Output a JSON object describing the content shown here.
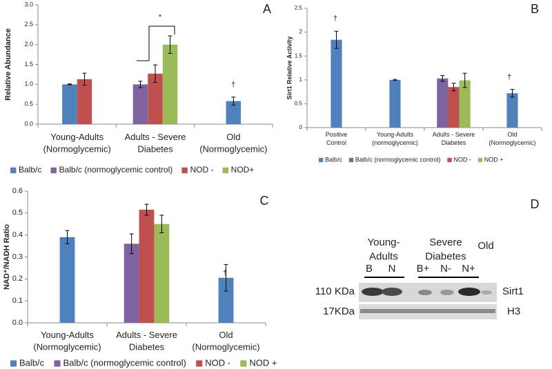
{
  "chart_data": [
    {
      "type": "bar",
      "panel_label": "A",
      "ylabel": "Relative Abundance",
      "categories": [
        "Young-Adults\n(Normoglycemic)",
        "Adults - Severe\nDiabetes",
        "Old\n(Normoglycemic)"
      ],
      "series": [
        {
          "name": "Balb/c",
          "color": "#4f81bd",
          "values": [
            1.0,
            null,
            0.58
          ],
          "errors": [
            0.01,
            null,
            0.1
          ]
        },
        {
          "name": "Balb/c (normoglycemic control)",
          "color": "#8064a2",
          "values": [
            null,
            1.0,
            null
          ],
          "errors": [
            null,
            0.08,
            null
          ]
        },
        {
          "name": "NOD -",
          "color": "#c0504d",
          "values": [
            1.13,
            1.27,
            null
          ],
          "errors": [
            0.15,
            0.22,
            null
          ]
        },
        {
          "name": "NOD+",
          "color": "#9bbb59",
          "values": [
            null,
            2.0,
            null
          ],
          "errors": [
            null,
            0.22,
            null
          ]
        }
      ],
      "ylim": [
        0,
        3
      ],
      "yticks": [
        {
          "value": 0,
          "label": "0.0"
        },
        0.5,
        {
          "value": 1,
          "label": "1.0"
        },
        1.5,
        {
          "value": 2,
          "label": "2.0"
        },
        2.5,
        {
          "value": 3,
          "label": "3.0"
        }
      ],
      "annotations": [
        "*",
        "†"
      ]
    },
    {
      "type": "bar",
      "panel_label": "B",
      "ylabel": "Sirt1 Relative Activity",
      "categories": [
        "Positive\nControl",
        "Young-Adults\n(normoglycemic)",
        "Adults - Severe\nDiabetes",
        "Old\n(Normoglycemic)"
      ],
      "series": [
        {
          "name": "Balb/c",
          "color": "#4f81bd",
          "values": [
            1.84,
            1.0,
            null,
            0.72
          ],
          "errors": [
            0.18,
            0.01,
            null,
            0.08
          ]
        },
        {
          "name": "Balb/c (normoglycemic control)",
          "color": "#8064a2",
          "values": [
            null,
            null,
            1.03,
            null
          ],
          "errors": [
            null,
            null,
            0.06,
            null
          ]
        },
        {
          "name": "NOD -",
          "color": "#c0504d",
          "values": [
            null,
            null,
            0.85,
            null
          ],
          "errors": [
            null,
            null,
            0.08,
            null
          ]
        },
        {
          "name": "NOD +",
          "color": "#9bbb59",
          "values": [
            null,
            null,
            0.99,
            null
          ],
          "errors": [
            null,
            null,
            0.15,
            null
          ]
        }
      ],
      "ylim": [
        0,
        2.5
      ],
      "yticks": [
        0,
        0.5,
        1,
        1.5,
        2,
        2.5
      ],
      "annotations": [
        "†",
        "†"
      ]
    },
    {
      "type": "bar",
      "panel_label": "C",
      "ylabel": "NAD⁺/NADH Ratio",
      "categories": [
        "Young-Adults\n(Normoglycemic)",
        "Adults - Severe\nDiabetes",
        "Old\n(Normoglycemic)"
      ],
      "series": [
        {
          "name": "Balb/c",
          "color": "#4f81bd",
          "values": [
            0.39,
            null,
            0.205
          ],
          "errors": [
            0.03,
            null,
            0.06
          ]
        },
        {
          "name": "Balb/c (normoglycemic control)",
          "color": "#8064a2",
          "values": [
            null,
            0.36,
            null
          ],
          "errors": [
            null,
            0.045,
            null
          ]
        },
        {
          "name": "NOD -",
          "color": "#c0504d",
          "values": [
            null,
            0.515,
            null
          ],
          "errors": [
            null,
            0.025,
            null
          ]
        },
        {
          "name": "NOD +",
          "color": "#9bbb59",
          "values": [
            null,
            0.45,
            null
          ],
          "errors": [
            null,
            0.04,
            null
          ]
        }
      ],
      "ylim": [
        0,
        0.6
      ],
      "yticks": [
        {
          "value": 0,
          "label": "0.0"
        },
        0.1,
        0.2,
        0.3,
        0.4,
        0.5,
        0.6
      ],
      "annotations": [
        "†"
      ]
    }
  ],
  "blot": {
    "panel_label": "D",
    "groups": [
      "Young-\nAdults",
      "Severe\nDiabetes",
      "Old"
    ],
    "lanes": [
      "B",
      "N",
      "B+",
      "N-",
      "N+"
    ],
    "rows": [
      {
        "size": "110 KDa",
        "protein": "Sirt1"
      },
      {
        "size": "17KDa",
        "protein": "H3"
      }
    ]
  }
}
